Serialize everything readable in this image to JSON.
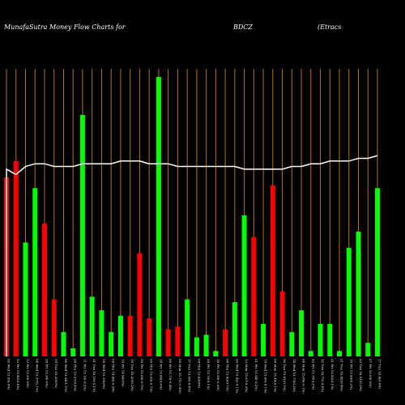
{
  "header": {
    "left": "MunafaSutra  Money Flow  Charts for",
    "symbol": "BDCZ",
    "right": "(Etracs"
  },
  "colors": {
    "background": "#000000",
    "grid": "#b8730e",
    "up": "#00ff00",
    "down": "#ff0000",
    "line": "#ffffff",
    "text": "#ffffff"
  },
  "chart_data": {
    "type": "bar",
    "ylim": [
      0,
      100
    ],
    "overlay_ylim": [
      0,
      100
    ],
    "bars": [
      {
        "label": "02 Wed 15.05(-0%)",
        "value": 66,
        "dir": "down"
      },
      {
        "label": "23 Fri 15.40(0.4%)",
        "value": 72,
        "dir": "down"
      },
      {
        "label": "13 Fri 15.35(-0%)",
        "value": 42,
        "dir": "up"
      },
      {
        "label": "04 Wed 15.37(0.1%)",
        "value": 62,
        "dir": "up"
      },
      {
        "label": "29 Fri 15.34(-0%)",
        "value": 49,
        "dir": "down"
      },
      {
        "label": "19 Tue 15.35(0%)",
        "value": 21,
        "dir": "down"
      },
      {
        "label": "06 Wed 15.54(1.1%)",
        "value": 9,
        "dir": "up"
      },
      {
        "label": "24 Thu 15.37(0.4%)",
        "value": 3,
        "dir": "up"
      },
      {
        "label": "11 Fri 15.16(-0.2%)",
        "value": 89,
        "dir": "up"
      },
      {
        "label": "31 Tue 15.19(-0.1%)",
        "value": 22,
        "dir": "up"
      },
      {
        "label": "18 Wed 15.19(0%)",
        "value": 17,
        "dir": "up"
      },
      {
        "label": "05 Thu 14.96(-0.3%)",
        "value": 9,
        "dir": "up"
      },
      {
        "label": "19 Fri 14.94(0%)",
        "value": 15,
        "dir": "up"
      },
      {
        "label": "10 Tue 15.30(0.2%)",
        "value": 15,
        "dir": "down"
      },
      {
        "label": "28 Fri 15.08(-0.1%)",
        "value": 38,
        "dir": "down"
      },
      {
        "label": "20 Thu 15.03(-0.1%)",
        "value": 14,
        "dir": "down"
      },
      {
        "label": "14 Fri 15.84(0.6%)",
        "value": 103,
        "dir": "up"
      },
      {
        "label": "06 Fri 15.73(-0.4%)",
        "value": 10,
        "dir": "down"
      },
      {
        "label": "28 Mon 15.71(-0.5%)",
        "value": 11,
        "dir": "down"
      },
      {
        "label": "17 Tue 15.58(-0.4%)",
        "value": 21,
        "dir": "up"
      },
      {
        "label": "09 Thu 15.65(0%)",
        "value": 7,
        "dir": "up"
      },
      {
        "label": "29 Fri 15.70(0.1%)",
        "value": 8,
        "dir": "up"
      },
      {
        "label": "18 Fri 15.56(-0.3%)",
        "value": 2,
        "dir": "up"
      },
      {
        "label": "08 Thu 15.43(0.7%)",
        "value": 10,
        "dir": "down"
      },
      {
        "label": "26 Wed 15.42(-0.1%)",
        "value": 20,
        "dir": "up"
      },
      {
        "label": "13 Mon 15.67(0.3%)",
        "value": 52,
        "dir": "up"
      },
      {
        "label": "01 Fri 15.54(-0.2%)",
        "value": 44,
        "dir": "down"
      },
      {
        "label": "19 Wed 15.68(-0.1%)",
        "value": 12,
        "dir": "up"
      },
      {
        "label": "09 Mon 15.46(0.1%)",
        "value": 63,
        "dir": "down"
      },
      {
        "label": "26 Tue 15.61(0.1%)",
        "value": 24,
        "dir": "down"
      },
      {
        "label": "14 Wed 15.73(0.3%)",
        "value": 9,
        "dir": "up"
      },
      {
        "label": "04 Mon 15.80(-0.1%)",
        "value": 17,
        "dir": "up"
      },
      {
        "label": "22 Fri 15.74(0.2%)",
        "value": 2,
        "dir": "up"
      },
      {
        "label": "12 Tue 15.75(-0.4%)",
        "value": 12,
        "dir": "up"
      },
      {
        "label": "31 Fri 15.82(0.1%)",
        "value": 12,
        "dir": "up"
      },
      {
        "label": "21 Tue 15.82(0.4%)",
        "value": 2,
        "dir": "up"
      },
      {
        "label": "10 Fri 15.93(0.2%)",
        "value": 40,
        "dir": "up"
      },
      {
        "label": "03 Tue 16.01(0.2%)",
        "value": 46,
        "dir": "up"
      },
      {
        "label": "27 Fri 16.05(-0%)",
        "value": 5,
        "dir": "up"
      },
      {
        "label": "17 Tue 16.06(-0%)",
        "value": 62,
        "dir": "up"
      }
    ],
    "line": [
      69,
      67,
      70,
      71,
      71,
      70,
      70,
      70,
      71,
      71,
      71,
      71,
      72,
      72,
      72,
      71,
      71,
      71,
      70,
      70,
      70,
      70,
      70,
      70,
      70,
      69,
      69,
      69,
      69,
      69,
      70,
      70,
      71,
      71,
      72,
      72,
      72,
      73,
      73,
      74
    ]
  }
}
